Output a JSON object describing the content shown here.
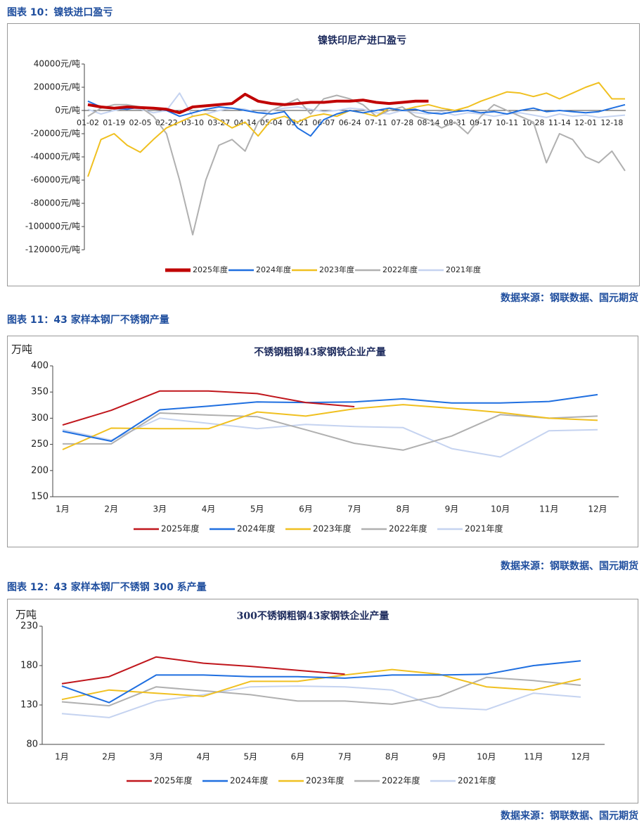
{
  "captions": [
    "图表 10：镍铁进口盈亏",
    "图表 11：43 家样本钢厂不锈钢产量",
    "图表 12：43 家样本钢厂不锈钢 300 系产量"
  ],
  "sources": [
    "数据来源：钢联数据、国元期货",
    "数据来源：钢联数据、国元期货",
    "数据来源：钢联数据、国元期货"
  ],
  "chart_data": [
    {
      "type": "line",
      "title": "镍铁印尼产进口盈亏",
      "categories": [
        "01-02",
        null,
        "01-19",
        null,
        "02-05",
        null,
        "02-22",
        null,
        "03-10",
        null,
        "03-27",
        null,
        "04-14",
        null,
        "05-04",
        null,
        "05-21",
        null,
        "06-07",
        null,
        "06-24",
        null,
        "07-11",
        null,
        "07-28",
        null,
        "08-14",
        null,
        "08-31",
        null,
        "09-17",
        null,
        "10-11",
        null,
        "10-28",
        null,
        "11-14",
        null,
        "12-01",
        null,
        "12-18",
        null
      ],
      "ylim": [
        -120000,
        40000
      ],
      "yticks": [
        {
          "value": 40000,
          "label": "40000元/吨"
        },
        {
          "value": 20000,
          "label": "20000元/吨"
        },
        {
          "value": 0,
          "label": "0元/吨"
        },
        {
          "value": -20000,
          "label": "-20000元/吨"
        },
        {
          "value": -40000,
          "label": "-40000元/吨"
        },
        {
          "value": -60000,
          "label": "-60000元/吨"
        },
        {
          "value": -80000,
          "label": "-80000元/吨"
        },
        {
          "value": -100000,
          "label": "-100000元/吨"
        },
        {
          "value": -120000,
          "label": "-120000元/吨"
        }
      ],
      "grid": false,
      "legend": "bottom",
      "series": [
        {
          "name": "2025年度",
          "color": "#c00000",
          "values": [
            5000,
            3000,
            2000,
            3000,
            2500,
            2000,
            1000,
            -2000,
            3000,
            4000,
            5000,
            6000,
            14000,
            8000,
            6000,
            5000,
            6000,
            7000,
            7000,
            8000,
            8000,
            9000,
            7000,
            6000,
            7000,
            8000,
            8000,
            null,
            null,
            null,
            null,
            null,
            null,
            null,
            null,
            null,
            null,
            null,
            null,
            null,
            null,
            null
          ]
        },
        {
          "name": "2024年度",
          "color": "#1f6fe0",
          "values": [
            8000,
            3000,
            2000,
            1000,
            3000,
            2000,
            0,
            -5000,
            -2000,
            1000,
            3000,
            2000,
            0,
            -2000,
            -3000,
            -1000,
            -15000,
            -22000,
            -8000,
            -3000,
            0,
            -2000,
            0,
            2000,
            0,
            1000,
            -2000,
            -3000,
            -1000,
            0,
            -2000,
            -1000,
            -3000,
            0,
            2000,
            -1000,
            0,
            -1000,
            -2000,
            -1000,
            2000,
            5000
          ]
        },
        {
          "name": "2023年度",
          "color": "#f0c020",
          "values": [
            -57000,
            -25000,
            -20000,
            -30000,
            -36000,
            -25000,
            -15000,
            -10000,
            -5000,
            -3000,
            -8000,
            -15000,
            -10000,
            -22000,
            -8000,
            -5000,
            -10000,
            -5000,
            -3000,
            -5000,
            0,
            -2000,
            -5000,
            2000,
            0,
            3000,
            5000,
            2000,
            0,
            3000,
            8000,
            12000,
            16000,
            15000,
            12000,
            15000,
            10000,
            15000,
            20000,
            24000,
            10000,
            10000
          ]
        },
        {
          "name": "2022年度",
          "color": "#b0b0b0",
          "values": [
            -5000,
            2000,
            5000,
            5000,
            3000,
            -5000,
            -20000,
            -60000,
            -107000,
            -60000,
            -30000,
            -25000,
            -35000,
            -10000,
            0,
            5000,
            10000,
            -3000,
            10000,
            13000,
            10000,
            5000,
            -5000,
            0,
            3000,
            -5000,
            -8000,
            -15000,
            -10000,
            -20000,
            -5000,
            5000,
            0,
            -5000,
            -10000,
            -45000,
            -20000,
            -25000,
            -40000,
            -45000,
            -35000,
            -52000
          ]
        },
        {
          "name": "2021年度",
          "color": "#c5d3f0",
          "values": [
            1000,
            -3000,
            0,
            2000,
            1000,
            -2000,
            0,
            15000,
            -5000,
            -3000,
            0,
            2000,
            1000,
            -2000,
            0,
            2000,
            3000,
            1000,
            -1000,
            0,
            2000,
            1000,
            -2000,
            -3000,
            0,
            -2000,
            -3000,
            -1000,
            -4000,
            -2000,
            -3000,
            -5000,
            -3000,
            -2000,
            -4000,
            -6000,
            -3000,
            -5000,
            -4000,
            -6000,
            -5000,
            -4000
          ]
        }
      ]
    },
    {
      "type": "line",
      "title": "不锈钢粗钢43家钢铁企业产量",
      "y_label": "万吨",
      "categories": [
        "1月",
        "2月",
        "3月",
        "4月",
        "5月",
        "6月",
        "7月",
        "8月",
        "9月",
        "10月",
        "11月",
        "12月"
      ],
      "ylim": [
        150,
        400
      ],
      "yticks": [
        150,
        200,
        250,
        300,
        350,
        400
      ],
      "grid": false,
      "legend": "bottom",
      "series": [
        {
          "name": "2025年度",
          "color": "#c0161c",
          "values": [
            287,
            315,
            352,
            352,
            347,
            330,
            322,
            null,
            null,
            null,
            null,
            null
          ]
        },
        {
          "name": "2024年度",
          "color": "#1f6fe0",
          "values": [
            275,
            256,
            316,
            323,
            331,
            330,
            331,
            337,
            329,
            329,
            332,
            345
          ]
        },
        {
          "name": "2023年度",
          "color": "#f0c020",
          "values": [
            240,
            281,
            280,
            280,
            312,
            304,
            318,
            326,
            319,
            311,
            300,
            296
          ]
        },
        {
          "name": "2022年度",
          "color": "#b0b0b0",
          "values": [
            251,
            251,
            310,
            306,
            303,
            278,
            252,
            239,
            266,
            307,
            300,
            304
          ]
        },
        {
          "name": "2021年度",
          "color": "#c5d3f0",
          "values": [
            278,
            258,
            300,
            290,
            280,
            288,
            284,
            282,
            242,
            226,
            276,
            278
          ]
        }
      ]
    },
    {
      "type": "line",
      "title": "300不锈钢粗钢43家钢铁企业产量",
      "y_label": "万吨",
      "categories": [
        "1月",
        "2月",
        "3月",
        "4月",
        "5月",
        "6月",
        "7月",
        "8月",
        "9月",
        "10月",
        "11月",
        "12月"
      ],
      "ylim": [
        80,
        230
      ],
      "yticks": [
        80,
        130,
        180,
        230
      ],
      "grid": false,
      "legend": "bottom",
      "series": [
        {
          "name": "2025年度",
          "color": "#c0161c",
          "values": [
            157,
            166,
            191,
            183,
            179,
            174,
            169,
            null,
            null,
            null,
            null,
            null
          ]
        },
        {
          "name": "2024年度",
          "color": "#1f6fe0",
          "values": [
            154,
            133,
            168,
            168,
            166,
            166,
            164,
            168,
            168,
            169,
            180,
            186
          ]
        },
        {
          "name": "2023年度",
          "color": "#f0c020",
          "values": [
            137,
            149,
            145,
            141,
            160,
            160,
            168,
            175,
            169,
            153,
            149,
            163
          ]
        },
        {
          "name": "2022年度",
          "color": "#b0b0b0",
          "values": [
            134,
            129,
            153,
            148,
            143,
            135,
            135,
            131,
            141,
            165,
            161,
            155
          ]
        },
        {
          "name": "2021年度",
          "color": "#c5d3f0",
          "values": [
            119,
            114,
            135,
            143,
            153,
            154,
            153,
            149,
            127,
            124,
            145,
            140
          ]
        }
      ]
    }
  ]
}
